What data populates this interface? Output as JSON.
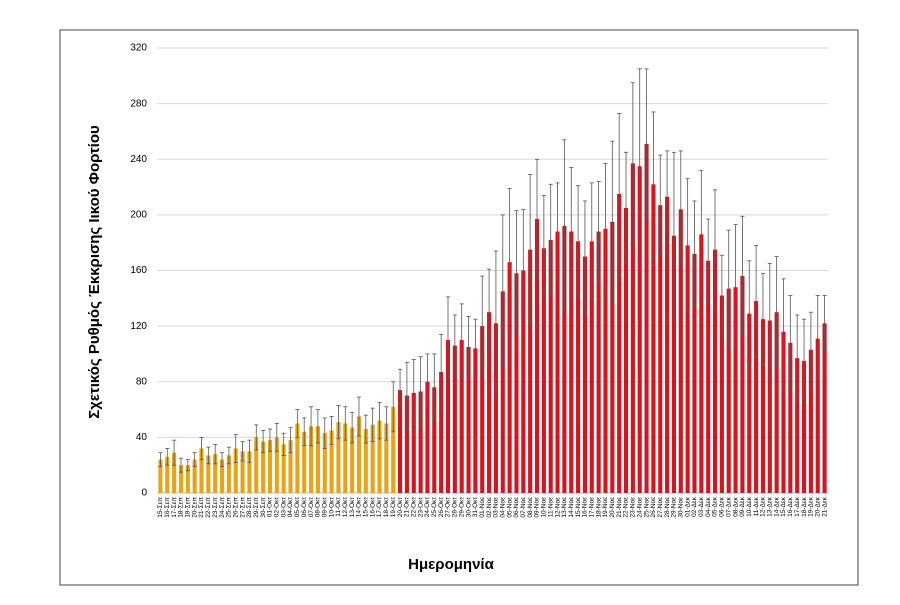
{
  "chart_data": {
    "type": "bar",
    "y_label": "Σχετικός Ρυθμός Έκκρισης Ιικού Φορτίου",
    "x_label": "Ημερομηνία",
    "ylim": [
      0,
      320
    ],
    "yticks": [
      0,
      40,
      80,
      120,
      160,
      200,
      240,
      280,
      320
    ],
    "grid": true,
    "categories": [
      "15-Σεπ",
      "16-Σεπ",
      "17-Σεπ",
      "18-Σεπ",
      "19-Σεπ",
      "20-Σεπ",
      "21-Σεπ",
      "22-Σεπ",
      "23-Σεπ",
      "24-Σεπ",
      "25-Σεπ",
      "26-Σεπ",
      "27-Σεπ",
      "28-Σεπ",
      "29-Σεπ",
      "30-Σεπ",
      "01-Οκτ",
      "02-Οκτ",
      "03-Οκτ",
      "04-Οκτ",
      "05-Οκτ",
      "06-Οκτ",
      "07-Οκτ",
      "08-Οκτ",
      "09-Οκτ",
      "10-Οκτ",
      "11-Οκτ",
      "12-Οκτ",
      "13-Οκτ",
      "14-Οκτ",
      "15-Οκτ",
      "16-Οκτ",
      "17-Οκτ",
      "18-Οκτ",
      "19-Οκτ",
      "20-Οκτ",
      "21-Οκτ",
      "22-Οκτ",
      "23-Οκτ",
      "24-Οκτ",
      "25-Οκτ",
      "26-Οκτ",
      "27-Οκτ",
      "28-Οκτ",
      "29-Οκτ",
      "30-Οκτ",
      "31-Οκτ",
      "01-Νοε",
      "02-Νοε",
      "03-Νοε",
      "04-Νοε",
      "05-Νοε",
      "06-Νοε",
      "07-Νοε",
      "08-Νοε",
      "09-Νοε",
      "10-Νοε",
      "11-Νοε",
      "12-Νοε",
      "13-Νοε",
      "14-Νοε",
      "15-Νοε",
      "16-Νοε",
      "17-Νοε",
      "18-Νοε",
      "19-Νοε",
      "20-Νοε",
      "21-Νοε",
      "22-Νοε",
      "23-Νοε",
      "24-Νοε",
      "25-Νοε",
      "26-Νοε",
      "27-Νοε",
      "28-Νοε",
      "29-Νοε",
      "30-Νοε",
      "01-Δεκ",
      "02-Δεκ",
      "03-Δεκ",
      "04-Δεκ",
      "05-Δεκ",
      "06-Δεκ",
      "07-Δεκ",
      "08-Δεκ",
      "09-Δεκ",
      "10-Δεκ",
      "11-Δεκ",
      "12-Δεκ",
      "13-Δεκ",
      "14-Δεκ",
      "15-Δεκ",
      "16-Δεκ",
      "17-Δεκ",
      "18-Δεκ",
      "19-Δεκ",
      "20-Δεκ",
      "21-Δεκ"
    ],
    "series": [
      {
        "color": "#e8a317",
        "values": [
          24,
          26,
          29,
          20,
          20,
          24,
          32,
          27,
          28,
          24,
          27,
          32,
          30,
          30,
          40,
          37,
          38,
          40,
          35,
          38,
          50,
          44,
          48,
          48,
          43,
          45,
          51,
          50,
          47,
          55,
          46,
          49,
          52,
          50,
          62,
          null,
          null,
          null,
          null,
          null,
          null,
          null,
          null,
          null,
          null,
          null,
          null,
          null,
          null,
          null,
          null,
          null,
          null,
          null,
          null,
          null,
          null,
          null,
          null,
          null,
          null,
          null,
          null,
          null,
          null,
          null,
          null,
          null,
          null,
          null,
          null,
          null,
          null,
          null,
          null,
          null,
          null,
          null,
          null,
          null,
          null,
          null,
          null,
          null,
          null,
          null,
          null,
          null,
          null,
          null,
          null,
          null,
          null,
          null,
          null,
          null,
          null,
          null
        ],
        "errors": [
          5,
          6,
          9,
          5,
          4,
          5,
          8,
          6,
          7,
          5,
          6,
          10,
          7,
          8,
          9,
          8,
          8,
          10,
          8,
          9,
          10,
          10,
          14,
          12,
          11,
          10,
          12,
          12,
          11,
          14,
          10,
          12,
          13,
          12,
          18,
          null,
          null,
          null,
          null,
          null,
          null,
          null,
          null,
          null,
          null,
          null,
          null,
          null,
          null,
          null,
          null,
          null,
          null,
          null,
          null,
          null,
          null,
          null,
          null,
          null,
          null,
          null,
          null,
          null,
          null,
          null,
          null,
          null,
          null,
          null,
          null,
          null,
          null,
          null,
          null,
          null,
          null,
          null,
          null,
          null,
          null,
          null,
          null,
          null,
          null,
          null,
          null,
          null,
          null,
          null,
          null,
          null,
          null,
          null,
          null,
          null,
          null,
          null
        ]
      },
      {
        "color": "#d7141e",
        "values": [
          null,
          null,
          null,
          null,
          null,
          null,
          null,
          null,
          null,
          null,
          null,
          null,
          null,
          null,
          null,
          null,
          null,
          null,
          null,
          null,
          null,
          null,
          null,
          null,
          null,
          null,
          null,
          null,
          null,
          null,
          null,
          null,
          null,
          null,
          null,
          74,
          70,
          72,
          73,
          80,
          76,
          87,
          110,
          106,
          110,
          105,
          104,
          120,
          130,
          122,
          145,
          166,
          158,
          160,
          175,
          197,
          176,
          182,
          188,
          192,
          188,
          181,
          170,
          181,
          188,
          190,
          195,
          215,
          205,
          237,
          235,
          251,
          222,
          207,
          213,
          185,
          204,
          178,
          172,
          186,
          167,
          175,
          142,
          147,
          148,
          156,
          129,
          138,
          125,
          124,
          130,
          116,
          108,
          97,
          95,
          103,
          111,
          122
        ],
        "errors": [
          null,
          null,
          null,
          null,
          null,
          null,
          null,
          null,
          null,
          null,
          null,
          null,
          null,
          null,
          null,
          null,
          null,
          null,
          null,
          null,
          null,
          null,
          null,
          null,
          null,
          null,
          null,
          null,
          null,
          null,
          null,
          null,
          null,
          null,
          null,
          15,
          24,
          24,
          25,
          20,
          24,
          27,
          31,
          22,
          26,
          22,
          21,
          36,
          31,
          52,
          55,
          53,
          45,
          44,
          54,
          43,
          38,
          40,
          35,
          62,
          46,
          40,
          40,
          42,
          36,
          47,
          58,
          58,
          40,
          58,
          70,
          54,
          52,
          36,
          33,
          60,
          42,
          48,
          38,
          46,
          30,
          43,
          29,
          42,
          45,
          43,
          38,
          40,
          33,
          41,
          40,
          38,
          34,
          31,
          30,
          27,
          31,
          20
        ]
      }
    ]
  }
}
